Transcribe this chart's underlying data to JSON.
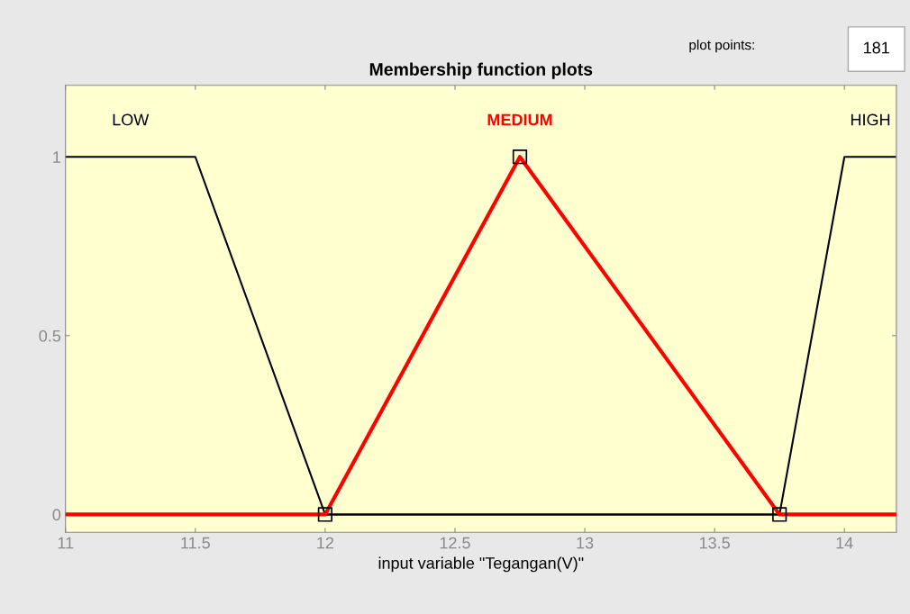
{
  "chart_data": {
    "type": "line",
    "title": "Membership function plots",
    "xlabel": "input variable \"Tegangan(V)\"",
    "xlim": [
      11,
      14.2
    ],
    "xticks": [
      11,
      11.5,
      12,
      12.5,
      13,
      13.5,
      14
    ],
    "ylim": [
      -0.05,
      1.2
    ],
    "yticks": [
      0,
      0.5,
      1
    ],
    "grid": false,
    "legend": false,
    "series": [
      {
        "name": "MEDIUM",
        "color": "#ff0000",
        "x": [
          11,
          12,
          12.75,
          13.75,
          14.2
        ],
        "values": [
          0,
          0,
          1,
          0,
          0
        ]
      },
      {
        "name": "LOW",
        "color": "#000000",
        "x": [
          11,
          11.5,
          12,
          14.2
        ],
        "values": [
          1,
          1,
          0,
          0
        ]
      },
      {
        "name": "HIGH",
        "color": "#000000",
        "x": [
          11,
          13.75,
          14,
          14.2
        ],
        "values": [
          0,
          0,
          1,
          1
        ]
      },
      {
        "type": "scatter",
        "marker": "square",
        "color": "#000000",
        "x": [
          12,
          12.75,
          13.75
        ],
        "values": [
          0,
          1,
          0
        ]
      }
    ],
    "annotations": [
      "plot points:",
      "181"
    ]
  }
}
